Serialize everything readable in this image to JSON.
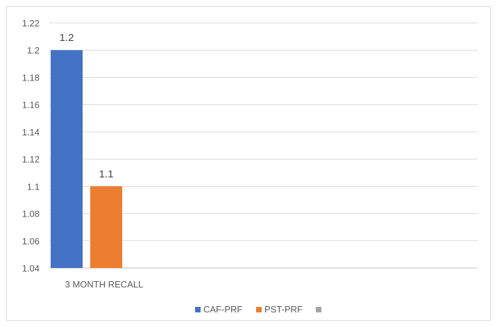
{
  "chart_data": {
    "type": "bar",
    "title": "",
    "xlabel": "",
    "ylabel": "",
    "categories": [
      "3 MONTH RECALL"
    ],
    "series": [
      {
        "name": "CAF-PRF",
        "values": [
          1.2
        ],
        "color": "#4472c4",
        "data_label": "1.2"
      },
      {
        "name": "PST-PRF",
        "values": [
          1.1
        ],
        "color": "#ed7d31",
        "data_label": "1.1"
      },
      {
        "name": "",
        "values": [
          null
        ],
        "color": "#a5a5a5",
        "data_label": ""
      }
    ],
    "ylim": [
      1.04,
      1.22
    ],
    "yticks": [
      "1.04",
      "1.06",
      "1.08",
      "1.1",
      "1.12",
      "1.14",
      "1.16",
      "1.18",
      "1.2",
      "1.22"
    ],
    "grid": true,
    "legend_position": "bottom"
  }
}
